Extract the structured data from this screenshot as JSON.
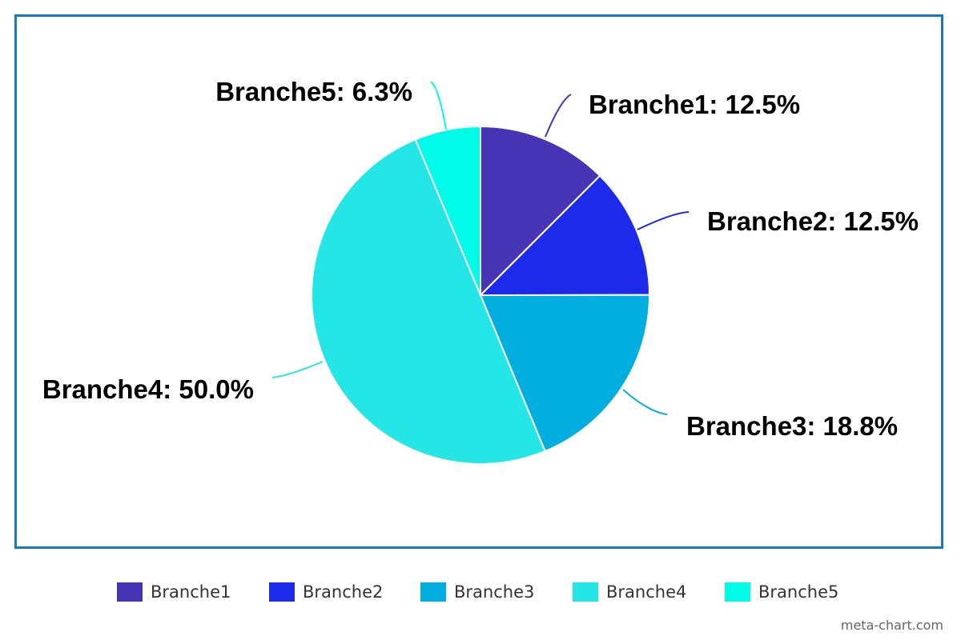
{
  "chart_data": {
    "type": "pie",
    "categories": [
      "Branche1",
      "Branche2",
      "Branche3",
      "Branche4",
      "Branche5"
    ],
    "values": [
      12.5,
      12.5,
      18.8,
      50.0,
      6.3
    ],
    "labels": [
      "Branche1: 12.5%",
      "Branche2: 12.5%",
      "Branche3: 18.8%",
      "Branche4: 50.0%",
      "Branche5: 6.3%"
    ],
    "colors": [
      "#4535b4",
      "#1d2aea",
      "#00aee0",
      "#25e6e6",
      "#00fbe8"
    ],
    "legend": [
      "Branche1",
      "Branche2",
      "Branche3",
      "Branche4",
      "Branche5"
    ],
    "legend_position": "bottom",
    "start_angle_deg": 0,
    "direction": "clockwise"
  },
  "watermark": "meta-chart.com"
}
